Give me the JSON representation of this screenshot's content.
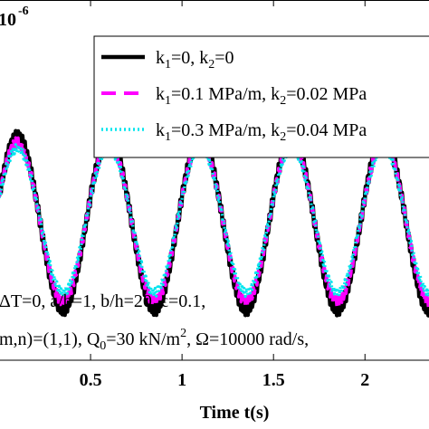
{
  "chart_data": {
    "type": "line",
    "title": "",
    "xlabel": "Time t(s)",
    "ylabel": "",
    "y_exponent": "10",
    "y_exponent_power": "-6",
    "xlim": [
      0.0,
      2.35
    ],
    "x_ticks": [
      0.5,
      1,
      1.5,
      2
    ],
    "x_tick_labels": [
      "0.5",
      "1",
      "1.5",
      "2"
    ],
    "ylim": [
      -1.6,
      2.6
    ],
    "grid": false,
    "legend_position": "top-right",
    "legend": [
      {
        "pre": "k",
        "sub1": "1",
        "mid": "=0, k",
        "sub2": "2",
        "post": "=0",
        "color": "#000000",
        "dash": "solid"
      },
      {
        "pre": "k",
        "sub1": "1",
        "mid": "=0.1 MPa/m, k",
        "sub2": "2",
        "post": "=0.02 MPa",
        "color": "#ff00ff",
        "dash": "dashed"
      },
      {
        "pre": "k",
        "sub1": "1",
        "mid": "=0.3 MPa/m, k",
        "sub2": "2",
        "post": "=0.04 MPa",
        "color": "#00e5ee",
        "dash": "dotted"
      }
    ],
    "annotations": {
      "line1": "ΔT=0, a/b=1, b/h=20, ϵ=0.1,",
      "line2_a": "m,n)=(1,1), Q",
      "line2_sub": "0",
      "line2_b": "=30 kN/m",
      "line2_sup": "2",
      "line2_c": ", Ω=10000 rad/s, "
    },
    "series": [
      {
        "name": "k1=0, k2=0",
        "color": "#000000",
        "dash": "solid",
        "period": 0.5,
        "phase_peak": 0.1,
        "amplitude": 1.0,
        "mean": 0.0,
        "ripple": 0.08,
        "ripple_freq": 80
      },
      {
        "name": "k1=0.1 MPa/m, k2=0.02 MPa",
        "color": "#ff00ff",
        "dash": "dashed",
        "period": 0.5,
        "phase_peak": 0.1,
        "amplitude": 0.93,
        "mean": 0.01,
        "ripple": 0.06,
        "ripple_freq": 80
      },
      {
        "name": "k1=0.3 MPa/m, k2=0.04 MPa",
        "color": "#00e5ee",
        "dash": "dotted",
        "period": 0.5,
        "phase_peak": 0.1,
        "amplitude": 0.84,
        "mean": 0.03,
        "ripple": 0.05,
        "ripple_freq": 80
      }
    ]
  }
}
